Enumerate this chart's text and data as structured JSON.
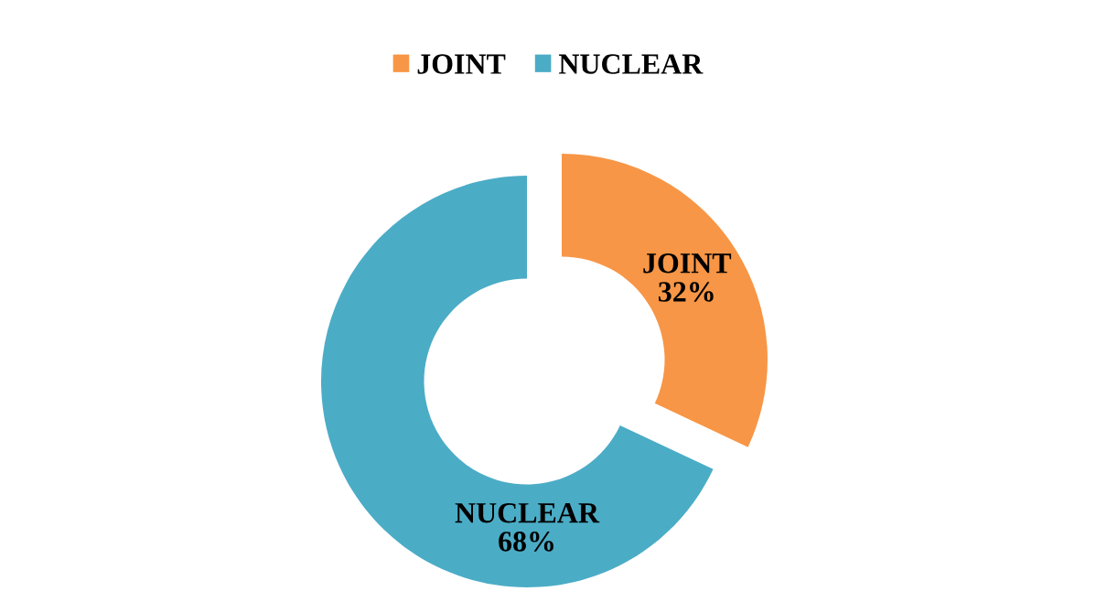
{
  "chart_data": {
    "type": "donut",
    "categories": [
      "JOINT",
      "NUCLEAR"
    ],
    "values": [
      32,
      68
    ],
    "colors": [
      "#F79646",
      "#4BACC6"
    ],
    "value_labels": [
      "32%",
      "68%"
    ],
    "legend": "top"
  }
}
